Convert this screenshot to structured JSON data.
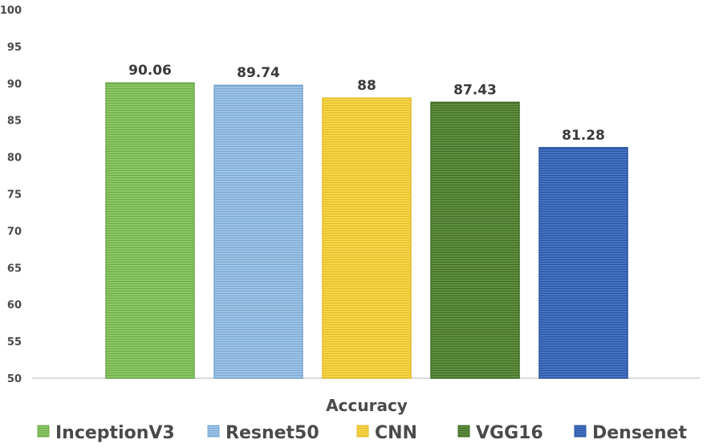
{
  "chart_data": {
    "type": "bar",
    "title": "",
    "xlabel": "Accuracy",
    "ylabel": "",
    "ylim": [
      50,
      100
    ],
    "yticks": [
      50,
      55,
      60,
      65,
      70,
      75,
      80,
      85,
      90,
      95,
      100
    ],
    "ytick_labels": [
      "50",
      "55",
      "60",
      "65",
      "70",
      "75",
      "80",
      "85",
      "90",
      "95",
      "100"
    ],
    "grid": false,
    "legend_position": "bottom",
    "series": [
      {
        "name": "InceptionV3",
        "value": 90.06,
        "label": "90.06",
        "color": "#8bc865",
        "stripe": "#6faa4a"
      },
      {
        "name": "Resnet50",
        "value": 89.74,
        "label": "89.74",
        "color": "#9dc3e6",
        "stripe": "#7aa8d2"
      },
      {
        "name": "CNN",
        "value": 88,
        "label": "88",
        "color": "#f7d548",
        "stripe": "#e3bd2a"
      },
      {
        "name": "VGG16",
        "value": 87.43,
        "label": "87.43",
        "color": "#5f8f3f",
        "stripe": "#3f6c26"
      },
      {
        "name": "Densenet",
        "value": 81.28,
        "label": "81.28",
        "color": "#4472c4",
        "stripe": "#2b559e"
      }
    ]
  }
}
